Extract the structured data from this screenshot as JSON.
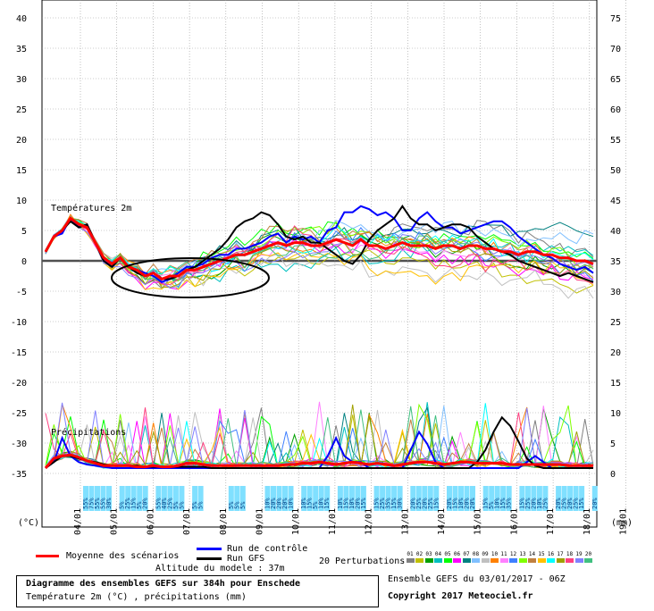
{
  "footer": {
    "title": "Diagramme des ensembles GEFS sur 384h pour Enschede",
    "subtitle": "Température 2m (°C) , précipitations (mm)",
    "ensemble_date": "Ensemble GEFS du 03/01/2017 - 06Z",
    "copyright": "Copyright 2017 Meteociel.fr"
  },
  "legend": {
    "mean_label": "Moyenne des scénarios",
    "control_label": "Run de contrôle",
    "gfs_label": "Run GFS",
    "altitude": "Altitude du modele : 37m",
    "perturbations_label": "20 Perturbations",
    "perturbation_ids": [
      "01",
      "02",
      "03",
      "04",
      "05",
      "06",
      "07",
      "08",
      "09",
      "10",
      "11",
      "12",
      "13",
      "14",
      "15",
      "16",
      "17",
      "18",
      "19",
      "20"
    ]
  },
  "chart_data": {
    "type": "line",
    "title": "",
    "temperature": {
      "label": "Températures 2m",
      "unit_label": "(°C)",
      "left_ticks": [
        40,
        35,
        30,
        25,
        20,
        15,
        10,
        5,
        0,
        -5,
        -10,
        -15,
        -20,
        -25,
        -30,
        -35
      ],
      "ylim": [
        -35,
        40
      ],
      "right_ticks": [
        75,
        70,
        65,
        60,
        55,
        50,
        45,
        40,
        35,
        30,
        25,
        20,
        15,
        10,
        5,
        0
      ],
      "t_mean": [
        1.5,
        4,
        5,
        7,
        6,
        5.5,
        3,
        0.5,
        -0.5,
        0.5,
        -1,
        -1.5,
        -2.5,
        -2,
        -3,
        -2.5,
        -2.5,
        -1.5,
        -1.5,
        -1,
        -0.5,
        0,
        0.5,
        1,
        1,
        1.5,
        2,
        2.5,
        3,
        2.5,
        3,
        3,
        2.5,
        2.5,
        3,
        3.5,
        3,
        2.5,
        3.5,
        2.5,
        2.5,
        2,
        2.5,
        3,
        2.5,
        2.5,
        2.5,
        2,
        2.5,
        2.5,
        2,
        2.5,
        2.5,
        2,
        2,
        1.5,
        1.5,
        1,
        1.5,
        1.5,
        1,
        1,
        0.5,
        0.5,
        0,
        0,
        -0.5
      ],
      "t_control": [
        1.5,
        4,
        4.5,
        7,
        5.5,
        6,
        3,
        0,
        -1,
        0.5,
        -1,
        -1.5,
        -2,
        -2.5,
        -3.5,
        -3,
        -2,
        -1,
        -1,
        -0.5,
        0.5,
        1,
        1,
        2,
        2,
        2.5,
        3,
        4,
        4.5,
        3,
        4,
        3.5,
        4,
        3,
        5,
        5.5,
        8,
        8,
        9,
        8.5,
        7.5,
        8,
        7,
        5,
        5,
        7,
        8,
        6.5,
        5.5,
        5.5,
        4.5,
        5,
        5.5,
        6,
        6.5,
        6.5,
        5.5,
        4,
        3,
        2,
        1,
        0.5,
        -0.5,
        -1,
        -1.5,
        -1,
        -2
      ],
      "t_gfs": [
        1.5,
        4,
        5,
        6.5,
        5.5,
        6,
        3,
        0,
        -1,
        0.5,
        -1,
        -2,
        -2.5,
        -2,
        -3,
        -3,
        -2.5,
        -1.5,
        -1,
        0,
        1,
        2,
        3.5,
        5.5,
        6.5,
        7,
        8,
        7.5,
        6,
        4,
        3.5,
        4,
        3,
        3,
        2,
        1,
        0,
        -0.5,
        1,
        3.5,
        5,
        6,
        7,
        9,
        7,
        6,
        6,
        5,
        5.5,
        6,
        6,
        5.5,
        4,
        3,
        2,
        1.5,
        1,
        0,
        -0.5,
        -1,
        -1.5,
        -2,
        -2.5,
        -2,
        -2.5,
        -3,
        -3.5
      ]
    },
    "precipitation": {
      "label": "Précipitations",
      "unit_label": "(mm)",
      "ticks": [
        10,
        5,
        0
      ],
      "p_mean": [
        0,
        0.8,
        1,
        1.1,
        0.9,
        0.6,
        0.4,
        0.2,
        0.2,
        0.2,
        0.2,
        0.1,
        0.1,
        0.2,
        0.1,
        0.1,
        0.2,
        0.4,
        0.4,
        0.3,
        0.2,
        0.2,
        0.2,
        0.2,
        0.2,
        0.2,
        0.2,
        0.2,
        0.2,
        0.3,
        0.3,
        0.4,
        0.4,
        0.5,
        0.4,
        0.3,
        0.4,
        0.5,
        0.4,
        0.3,
        0.4,
        0.3,
        0.2,
        0.3,
        0.4,
        0.5,
        0.5,
        0.4,
        0.3,
        0.4,
        0.5,
        0.5,
        0.4,
        0.4,
        0.4,
        0.4,
        0.3,
        0.3,
        0.3,
        0.3,
        0.3,
        0.3,
        0.3,
        0.2,
        0.2,
        0.2,
        0.2
      ],
      "p_control": [
        0,
        0.5,
        2.5,
        1,
        0.5,
        0.3,
        0.2,
        0.1,
        0,
        0,
        0,
        0,
        0,
        0,
        0,
        0,
        0,
        0,
        0,
        0,
        0,
        0,
        0,
        0,
        0,
        0,
        0,
        0,
        0,
        0,
        0,
        0,
        0,
        0,
        1,
        2.5,
        1,
        0.5,
        0.5,
        0,
        0,
        0,
        0,
        0,
        1.5,
        3,
        2,
        0.5,
        0,
        0,
        0,
        0,
        0,
        0,
        0,
        0,
        0,
        0,
        0.5,
        1,
        0.5,
        0,
        0,
        0,
        0,
        0,
        0
      ],
      "p_gfs": [
        0,
        0.5,
        1,
        1,
        0.8,
        0.6,
        0.5,
        0.3,
        0.2,
        0.2,
        0.2,
        0.2,
        0.1,
        0.1,
        0.1,
        0.1,
        0.1,
        0.1,
        0.1,
        0.1,
        0,
        0,
        0,
        0,
        0,
        0,
        0,
        0,
        0,
        0,
        0,
        0,
        0,
        0,
        0,
        0,
        0,
        0,
        0,
        0,
        0,
        0,
        0,
        0,
        0,
        0,
        0,
        0,
        0,
        0,
        0,
        0,
        0.5,
        1.5,
        3,
        4.2,
        3.5,
        2.2,
        0.8,
        0.2,
        0,
        0,
        0,
        0,
        0,
        0,
        0
      ]
    },
    "x": {
      "dates": [
        "04/01",
        "05/01",
        "06/01",
        "07/01",
        "08/01",
        "09/01",
        "10/01",
        "11/01",
        "12/01",
        "13/01",
        "14/01",
        "15/01",
        "16/01",
        "17/01",
        "18/01",
        "19/01"
      ]
    },
    "probabilities": [
      {
        "day": "05/01",
        "values": [
          "55%",
          "75%",
          "55%",
          "55%",
          "30%"
        ]
      },
      {
        "day": "06/01",
        "values": [
          "5%",
          "25%",
          "15%",
          "5%",
          "20%"
        ]
      },
      {
        "day": "07/01",
        "values": [
          "55%",
          "40%",
          "25%",
          "5%",
          "5%"
        ]
      },
      {
        "day": "08/01",
        "values": [
          "5%",
          "5%"
        ]
      },
      {
        "day": "09/01",
        "values": [
          "5%",
          "5%",
          "5%"
        ]
      },
      {
        "day": "10/01",
        "values": [
          "10%",
          "20%",
          "20%",
          "20%",
          "10%"
        ]
      },
      {
        "day": "11/01",
        "values": [
          "10%",
          "15%",
          "5%",
          "10%",
          "15%"
        ]
      },
      {
        "day": "12/01",
        "values": [
          "10%",
          "15%",
          "10%",
          "20%",
          "15%"
        ]
      },
      {
        "day": "13/01",
        "values": [
          "15%",
          "25%",
          "35%",
          "15%",
          "30%"
        ]
      },
      {
        "day": "14/01",
        "values": [
          "20%",
          "25%",
          "20%",
          "25%",
          "15%"
        ]
      },
      {
        "day": "15/01",
        "values": [
          "20%",
          "15%",
          "10%",
          "20%",
          "20%"
        ]
      },
      {
        "day": "16/01",
        "values": [
          "15%",
          "5%",
          "10%",
          "15%",
          "35%"
        ]
      },
      {
        "day": "17/01",
        "values": [
          "15%",
          "25%",
          "20%",
          "10%",
          "25%"
        ]
      },
      {
        "day": "18/01",
        "values": [
          "20%",
          "25%",
          "20%",
          "25%",
          "15%"
        ]
      },
      {
        "day": "19/01",
        "values": [
          "20%"
        ]
      }
    ],
    "colors": {
      "mean": "#ff0000",
      "control": "#0000ff",
      "gfs": "#000000",
      "perturbations": [
        "#808080",
        "#c0c000",
        "#00a000",
        "#00c0c0",
        "#00ff00",
        "#ff00ff",
        "#008080",
        "#80c0ff",
        "#c0c0c0",
        "#ff8000",
        "#ff80ff",
        "#4080ff",
        "#80ff00",
        "#c08040",
        "#ffc000",
        "#00ffff",
        "#a0a000",
        "#ff4080",
        "#8080ff",
        "#40c080"
      ],
      "probability_box": "#80e0ff"
    }
  }
}
